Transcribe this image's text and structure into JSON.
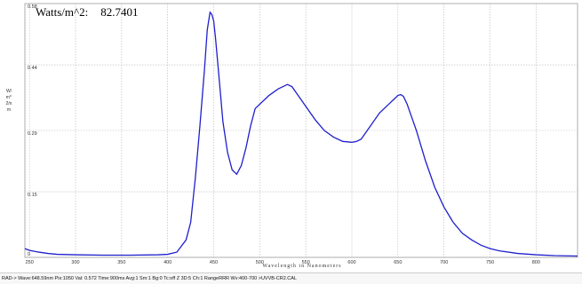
{
  "readout": {
    "label": "Watts/m^2:",
    "value": "82.7401"
  },
  "status_bar": {
    "text": "RAD-> Wave:648.59nm  Pix:1050  Val: 0.572  Time:900ms  Avg:1  Sm:1  Bg:0  Tc:off  Z  3D:5  Ch:1  RangeRRR  Wv:400-700 >UVVB-CR2.CAL"
  },
  "chart_data": {
    "type": "line",
    "title": "",
    "xlabel": "Wavelength in Nanometers",
    "ylabel": "W/m^2/nm",
    "xlim": [
      245,
      845
    ],
    "ylim": [
      0,
      0.58
    ],
    "grid": true,
    "x_ticks": [
      250,
      300,
      350,
      400,
      450,
      500,
      550,
      600,
      650,
      700,
      750,
      800
    ],
    "y_ticks": [
      0,
      0.15,
      0.29,
      0.44,
      0.58
    ],
    "y_tick_labels": [
      "0",
      "0.15",
      "0.29",
      "0.44",
      "0.58"
    ],
    "color": "#1f1fcc",
    "series": [
      {
        "x": [
          245,
          250,
          260,
          270,
          280,
          300,
          330,
          360,
          390,
          400,
          410,
          420,
          425,
          430,
          435,
          440,
          443,
          446,
          448,
          450,
          452,
          455,
          460,
          465,
          470,
          475,
          480,
          485,
          490,
          495,
          500,
          505,
          510,
          520,
          525,
          530,
          535,
          540,
          550,
          560,
          570,
          580,
          590,
          600,
          605,
          610,
          615,
          620,
          630,
          640,
          645,
          650,
          653,
          656,
          660,
          665,
          670,
          680,
          690,
          700,
          710,
          720,
          730,
          740,
          750,
          760,
          780,
          800,
          820,
          845
        ],
        "y": [
          0.02,
          0.016,
          0.012,
          0.009,
          0.007,
          0.006,
          0.005,
          0.005,
          0.006,
          0.007,
          0.012,
          0.04,
          0.08,
          0.18,
          0.3,
          0.43,
          0.52,
          0.56,
          0.555,
          0.54,
          0.5,
          0.43,
          0.31,
          0.24,
          0.2,
          0.19,
          0.21,
          0.25,
          0.3,
          0.34,
          0.35,
          0.36,
          0.37,
          0.385,
          0.39,
          0.395,
          0.39,
          0.375,
          0.345,
          0.315,
          0.29,
          0.275,
          0.265,
          0.263,
          0.265,
          0.27,
          0.285,
          0.3,
          0.33,
          0.35,
          0.36,
          0.37,
          0.372,
          0.368,
          0.35,
          0.32,
          0.29,
          0.22,
          0.16,
          0.115,
          0.08,
          0.055,
          0.04,
          0.028,
          0.02,
          0.015,
          0.009,
          0.006,
          0.004,
          0.003
        ]
      }
    ]
  }
}
